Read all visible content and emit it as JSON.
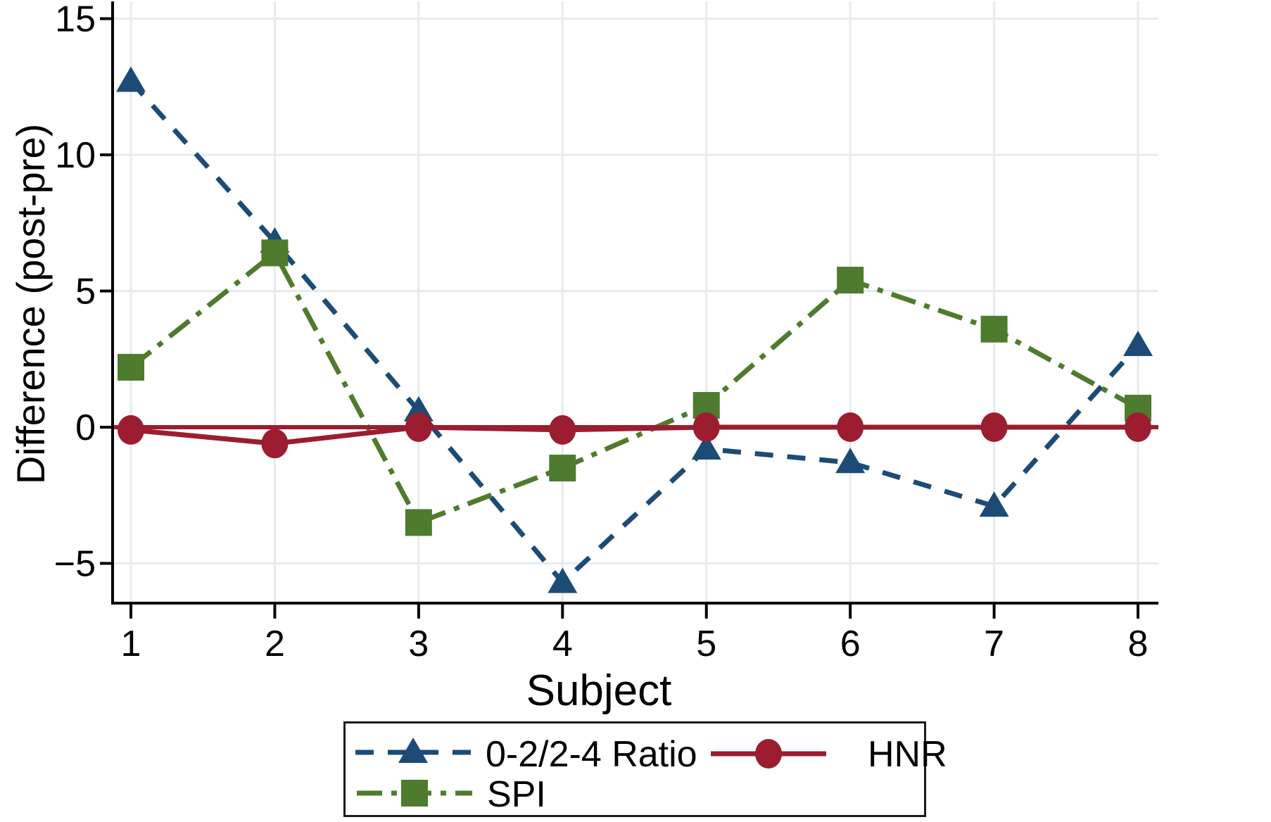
{
  "chart_data": {
    "type": "line",
    "title": "",
    "xlabel": "Subject",
    "ylabel": "Difference (post-pre)",
    "categories": [
      1,
      2,
      3,
      4,
      5,
      6,
      7,
      8
    ],
    "yticks": [
      15,
      10,
      5,
      0,
      -5
    ],
    "ylim": [
      -6.5,
      15.6
    ],
    "grid": true,
    "legend_position": "bottom",
    "refline": {
      "y": 0,
      "color": "#9c1d2f"
    },
    "series": [
      {
        "name": "0-2/2-4 Ratio",
        "color": "#1c4b76",
        "line_style": "dashed",
        "marker": "triangle",
        "values": [
          12.7,
          6.8,
          0.6,
          -5.7,
          -0.8,
          -1.3,
          -2.9,
          3.0
        ]
      },
      {
        "name": "HNR",
        "color": "#9c1d2f",
        "line_style": "solid",
        "marker": "circle",
        "values": [
          -0.1,
          -0.6,
          0.0,
          -0.1,
          0.0,
          0.0,
          0.0,
          0.0
        ]
      },
      {
        "name": "SPI",
        "color": "#4e7b2d",
        "line_style": "dash-dot",
        "marker": "square",
        "values": [
          2.2,
          6.4,
          -3.5,
          -1.5,
          0.8,
          5.4,
          3.6,
          0.7
        ]
      }
    ]
  },
  "colors": {
    "axis": "#000000",
    "grid": "#e6ebee",
    "background": "#ffffff",
    "legend_border": "#1a1a1a",
    "text": "#000000"
  }
}
